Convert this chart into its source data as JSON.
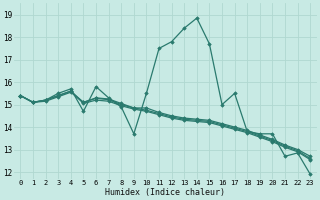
{
  "xlabel": "Humidex (Indice chaleur)",
  "xlim": [
    -0.5,
    23.5
  ],
  "ylim": [
    11.7,
    19.5
  ],
  "yticks": [
    12,
    13,
    14,
    15,
    16,
    17,
    18,
    19
  ],
  "xticks": [
    0,
    1,
    2,
    3,
    4,
    5,
    6,
    7,
    8,
    9,
    10,
    11,
    12,
    13,
    14,
    15,
    16,
    17,
    18,
    19,
    20,
    21,
    22,
    23
  ],
  "bg_color": "#c8eae4",
  "grid_color": "#b0d8d0",
  "line_color": "#2a7a6e",
  "line_width": 0.9,
  "marker": "D",
  "marker_size": 1.8,
  "series": [
    [
      15.4,
      15.1,
      15.2,
      15.5,
      15.7,
      14.7,
      15.8,
      15.3,
      14.9,
      13.7,
      15.5,
      17.5,
      17.8,
      18.4,
      18.85,
      17.7,
      15.0,
      15.5,
      13.8,
      13.7,
      13.7,
      12.7,
      12.85,
      11.9
    ],
    [
      15.4,
      15.1,
      15.15,
      15.35,
      15.55,
      15.1,
      15.3,
      15.25,
      15.05,
      14.85,
      14.85,
      14.65,
      14.5,
      14.4,
      14.35,
      14.3,
      14.15,
      14.0,
      13.85,
      13.65,
      13.45,
      13.2,
      13.0,
      12.7
    ],
    [
      15.4,
      15.1,
      15.2,
      15.4,
      15.6,
      15.05,
      15.2,
      15.15,
      14.95,
      14.8,
      14.7,
      14.55,
      14.4,
      14.3,
      14.25,
      14.2,
      14.05,
      13.9,
      13.75,
      13.55,
      13.35,
      13.1,
      12.9,
      12.55
    ],
    [
      15.4,
      15.1,
      15.2,
      15.4,
      15.6,
      15.1,
      15.28,
      15.22,
      15.0,
      14.85,
      14.75,
      14.6,
      14.45,
      14.35,
      14.3,
      14.25,
      14.1,
      13.95,
      13.8,
      13.6,
      13.4,
      13.15,
      12.95,
      12.6
    ]
  ]
}
